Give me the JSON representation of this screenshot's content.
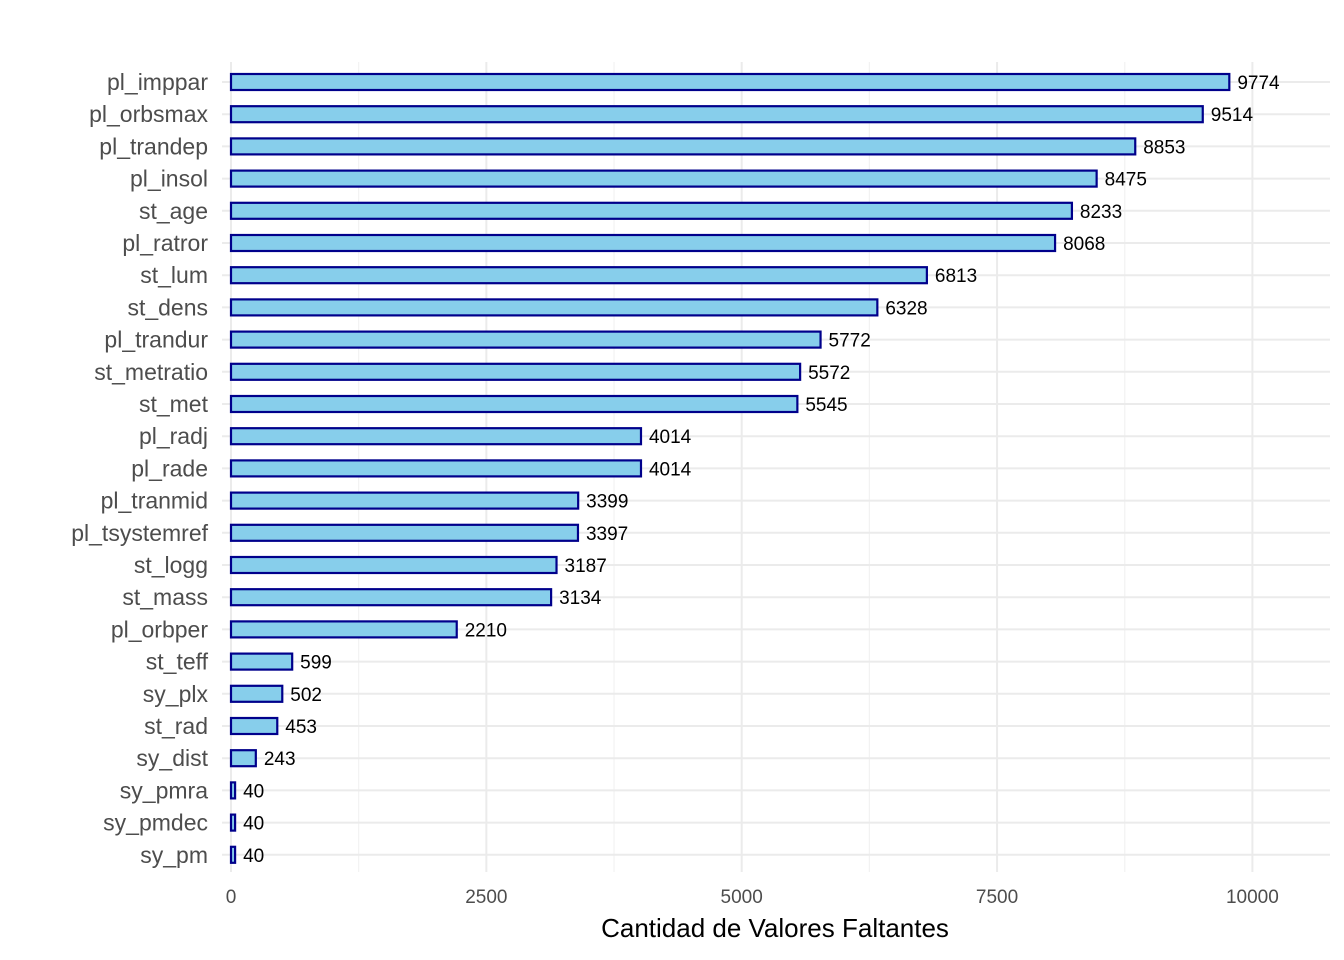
{
  "chart_data": {
    "type": "bar",
    "orientation": "horizontal",
    "title": "",
    "xlabel": "Cantidad de Valores Faltantes",
    "ylabel": "",
    "xlim": [
      0,
      10700
    ],
    "x_ticks": [
      0,
      2500,
      5000,
      7500,
      10000
    ],
    "grid": true,
    "legend": "none",
    "bar_fill": "#87CEEB",
    "bar_stroke": "#00008B",
    "categories": [
      "pl_imppar",
      "pl_orbsmax",
      "pl_trandep",
      "pl_insol",
      "st_age",
      "pl_ratror",
      "st_lum",
      "st_dens",
      "pl_trandur",
      "st_metratio",
      "st_met",
      "pl_radj",
      "pl_rade",
      "pl_tranmid",
      "pl_tsystemref",
      "st_logg",
      "st_mass",
      "pl_orbper",
      "st_teff",
      "sy_plx",
      "st_rad",
      "sy_dist",
      "sy_pmra",
      "sy_pmdec",
      "sy_pm"
    ],
    "values": [
      9774,
      9514,
      8853,
      8475,
      8233,
      8068,
      6813,
      6328,
      5772,
      5572,
      5545,
      4014,
      4014,
      3399,
      3397,
      3187,
      3134,
      2210,
      599,
      502,
      453,
      243,
      40,
      40,
      40
    ]
  }
}
